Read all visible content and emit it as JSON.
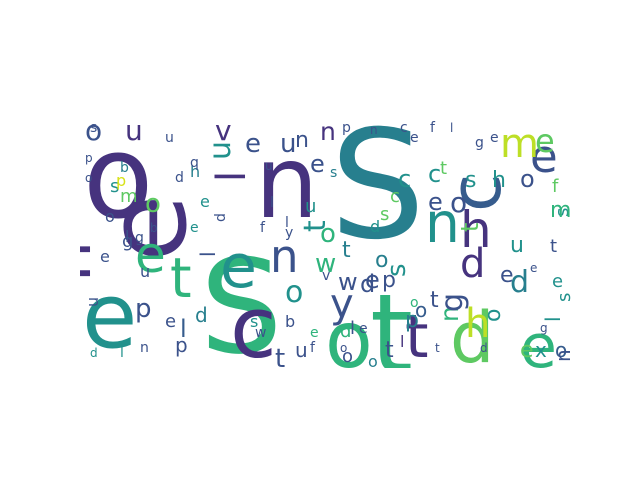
{
  "word_cloud": {
    "colors": {
      "purple": "#46337e",
      "indigo": "#3b528b",
      "blue": "#365c8d",
      "teal": "#277f8e",
      "sea": "#21918c",
      "green": "#2fb47c",
      "lime": "#5ec962",
      "yellow": "#bddf26",
      "gold": "#d8e219"
    },
    "words": [
      {
        "text": "S",
        "color": "teal",
        "emphasis": "largest"
      },
      {
        "text": "S",
        "color": "green",
        "emphasis": "large"
      },
      {
        "text": "o",
        "color": "purple",
        "emphasis": "large"
      },
      {
        "text": "n",
        "color": "purple",
        "emphasis": "large"
      },
      {
        "text": "e",
        "color": "sea",
        "emphasis": "large"
      },
      {
        "text": "e",
        "color": "purple",
        "emphasis": "large"
      },
      {
        "text": "c",
        "color": "purple",
        "emphasis": "large"
      },
      {
        "text": "o",
        "color": "green",
        "emphasis": "large"
      },
      {
        "text": "t",
        "color": "green",
        "emphasis": "large"
      },
      {
        "text": "d",
        "color": "lime",
        "emphasis": "large"
      },
      {
        "text": "e",
        "color": "green",
        "emphasis": "large"
      },
      {
        "text": "c",
        "color": "blue",
        "emphasis": "large"
      },
      {
        "text": "h",
        "color": "purple",
        "emphasis": "large"
      },
      {
        "text": "t",
        "color": "green",
        "emphasis": "medium"
      },
      {
        "text": "e",
        "color": "green",
        "emphasis": "medium"
      },
      {
        "text": "e",
        "color": "sea",
        "emphasis": "medium"
      },
      {
        "text": "n",
        "color": "sea",
        "emphasis": "medium"
      },
      {
        "text": "h",
        "color": "purple",
        "emphasis": "medium"
      },
      {
        "text": "n",
        "color": "indigo",
        "emphasis": "medium"
      },
      {
        "text": "t",
        "color": "purple",
        "emphasis": "medium"
      },
      {
        "text": "y",
        "color": "indigo",
        "emphasis": "medium"
      },
      {
        "text": "e",
        "color": "indigo",
        "emphasis": "medium"
      },
      {
        "text": "m",
        "color": "yellow",
        "emphasis": "medium"
      },
      {
        "text": "e",
        "color": "lime",
        "emphasis": "medium"
      },
      {
        "text": "l",
        "color": "purple",
        "emphasis": "medium"
      },
      {
        "text": "d",
        "color": "purple",
        "emphasis": "medium"
      },
      {
        "text": "h",
        "color": "yellow",
        "emphasis": "medium"
      },
      {
        "text": "n",
        "color": "green",
        "emphasis": "medium"
      },
      {
        "text": "g",
        "color": "indigo",
        "emphasis": "medium"
      },
      {
        "text": "d",
        "color": "teal",
        "emphasis": "medium"
      },
      {
        "text": "o",
        "color": "indigo",
        "emphasis": "medium"
      },
      {
        "text": "u",
        "color": "purple",
        "emphasis": "medium"
      },
      {
        "text": "v",
        "color": "purple",
        "emphasis": "medium"
      },
      {
        "text": "u",
        "color": "sea",
        "emphasis": "medium"
      },
      {
        "text": "n",
        "color": "purple",
        "emphasis": "medium"
      },
      {
        "text": "o",
        "color": "sea",
        "emphasis": "medium"
      },
      {
        "text": "t",
        "color": "sea",
        "emphasis": "medium"
      },
      {
        "text": "w",
        "color": "green",
        "emphasis": "medium"
      },
      {
        "text": "p",
        "color": "indigo",
        "emphasis": "medium"
      },
      {
        "text": "l",
        "color": "blue",
        "emphasis": "medium"
      },
      {
        "text": "t",
        "color": "indigo",
        "emphasis": "medium"
      },
      {
        "text": "o",
        "color": "indigo",
        "emphasis": "medium"
      },
      {
        "text": "e",
        "color": "indigo",
        "emphasis": "small"
      },
      {
        "text": "u",
        "color": "indigo",
        "emphasis": "small"
      },
      {
        "text": "n",
        "color": "indigo",
        "emphasis": "small"
      },
      {
        "text": "e",
        "color": "indigo",
        "emphasis": "small"
      },
      {
        "text": "o",
        "color": "indigo",
        "emphasis": "small"
      },
      {
        "text": "c",
        "color": "sea",
        "emphasis": "small"
      },
      {
        "text": "s",
        "color": "sea",
        "emphasis": "small"
      },
      {
        "text": "h",
        "color": "sea",
        "emphasis": "small"
      },
      {
        "text": "o",
        "color": "lime",
        "emphasis": "small"
      },
      {
        "text": "t",
        "color": "lime",
        "emphasis": "small"
      },
      {
        "text": "c",
        "color": "sea",
        "emphasis": "small"
      },
      {
        "text": "e",
        "color": "indigo",
        "emphasis": "small"
      },
      {
        "text": "o",
        "color": "green",
        "emphasis": "small"
      },
      {
        "text": "w",
        "color": "indigo",
        "emphasis": "small"
      },
      {
        "text": "e",
        "color": "indigo",
        "emphasis": "small"
      },
      {
        "text": "p",
        "color": "indigo",
        "emphasis": "small"
      },
      {
        "text": "o",
        "color": "teal",
        "emphasis": "small"
      },
      {
        "text": "t",
        "color": "teal",
        "emphasis": "small"
      },
      {
        "text": "s",
        "color": "sea",
        "emphasis": "small"
      },
      {
        "text": "p",
        "color": "teal",
        "emphasis": "small"
      },
      {
        "text": "o",
        "color": "blue",
        "emphasis": "small"
      },
      {
        "text": "t",
        "color": "indigo",
        "emphasis": "small"
      },
      {
        "text": "e",
        "color": "indigo",
        "emphasis": "small"
      },
      {
        "text": "o",
        "color": "sea",
        "emphasis": "small"
      },
      {
        "text": "u",
        "color": "sea",
        "emphasis": "small"
      },
      {
        "text": "e",
        "color": "lime",
        "emphasis": "small"
      },
      {
        "text": "x",
        "color": "sea",
        "emphasis": "small"
      },
      {
        "text": "o",
        "color": "blue",
        "emphasis": "small"
      },
      {
        "text": "d",
        "color": "teal",
        "emphasis": "small"
      },
      {
        "text": "u",
        "color": "indigo",
        "emphasis": "small"
      },
      {
        "text": "e",
        "color": "indigo",
        "emphasis": "small"
      },
      {
        "text": "p",
        "color": "indigo",
        "emphasis": "small"
      },
      {
        "text": "g",
        "color": "indigo",
        "emphasis": "small"
      },
      {
        "text": "l",
        "color": "indigo",
        "emphasis": "small"
      },
      {
        "text": "l",
        "color": "indigo",
        "emphasis": "small"
      },
      {
        "text": "d",
        "color": "indigo",
        "emphasis": "small"
      },
      {
        "text": "t",
        "color": "indigo",
        "emphasis": "small"
      },
      {
        "text": "n",
        "color": "indigo",
        "emphasis": "small"
      },
      {
        "text": "u",
        "color": "indigo",
        "emphasis": "small"
      },
      {
        "text": "o",
        "color": "indigo",
        "emphasis": "small"
      },
      {
        "text": "l",
        "color": "purple",
        "emphasis": "small"
      },
      {
        "text": "t",
        "color": "lime",
        "emphasis": "small"
      },
      {
        "text": "c",
        "color": "lime",
        "emphasis": "small"
      },
      {
        "text": "s",
        "color": "lime",
        "emphasis": "small"
      },
      {
        "text": "d",
        "color": "sea",
        "emphasis": "small"
      },
      {
        "text": "t",
        "color": "teal",
        "emphasis": "small"
      },
      {
        "text": "f",
        "color": "lime",
        "emphasis": "small"
      },
      {
        "text": "s",
        "color": "sea",
        "emphasis": "small"
      },
      {
        "text": "t",
        "color": "indigo",
        "emphasis": "small"
      },
      {
        "text": "e",
        "color": "sea",
        "emphasis": "small"
      },
      {
        "text": "l",
        "color": "sea",
        "emphasis": "small"
      },
      {
        "text": "s",
        "color": "sea",
        "emphasis": "small"
      },
      {
        "text": "m",
        "color": "green",
        "emphasis": "small"
      },
      {
        "text": "o",
        "color": "teal",
        "emphasis": "small"
      },
      {
        "text": "d",
        "color": "green",
        "emphasis": "small"
      },
      {
        "text": "s",
        "color": "sea",
        "emphasis": "small"
      },
      {
        "text": "u",
        "color": "sea",
        "emphasis": "small"
      },
      {
        "text": "s",
        "color": "sea",
        "emphasis": "small"
      },
      {
        "text": "m",
        "color": "lime",
        "emphasis": "small"
      },
      {
        "text": "p",
        "color": "gold",
        "emphasis": "small"
      },
      {
        "text": "o",
        "color": "indigo",
        "emphasis": "small"
      },
      {
        "text": "s",
        "color": "indigo",
        "emphasis": "small"
      },
      {
        "text": "b",
        "color": "teal",
        "emphasis": "small"
      },
      {
        "text": "d",
        "color": "indigo",
        "emphasis": "small"
      },
      {
        "text": "h",
        "color": "teal",
        "emphasis": "small"
      },
      {
        "text": "e",
        "color": "sea",
        "emphasis": "small"
      },
      {
        "text": "d",
        "color": "indigo",
        "emphasis": "small"
      },
      {
        "text": "e",
        "color": "sea",
        "emphasis": "small"
      },
      {
        "text": "l",
        "color": "indigo",
        "emphasis": "small"
      },
      {
        "text": "g",
        "color": "indigo",
        "emphasis": "small"
      },
      {
        "text": "u",
        "color": "indigo",
        "emphasis": "small"
      },
      {
        "text": "e",
        "color": "indigo",
        "emphasis": "small"
      },
      {
        "text": "l",
        "color": "sea",
        "emphasis": "small"
      },
      {
        "text": "d",
        "color": "sea",
        "emphasis": "small"
      },
      {
        "text": "n",
        "color": "indigo",
        "emphasis": "small"
      },
      {
        "text": "b",
        "color": "indigo",
        "emphasis": "small"
      },
      {
        "text": "e",
        "color": "green",
        "emphasis": "small"
      },
      {
        "text": "o",
        "color": "green",
        "emphasis": "small"
      },
      {
        "text": "s",
        "color": "teal",
        "emphasis": "small"
      },
      {
        "text": "p",
        "color": "indigo",
        "emphasis": "small"
      },
      {
        "text": "n",
        "color": "indigo",
        "emphasis": "small"
      },
      {
        "text": "c",
        "color": "indigo",
        "emphasis": "small"
      },
      {
        "text": "e",
        "color": "indigo",
        "emphasis": "small"
      },
      {
        "text": "f",
        "color": "indigo",
        "emphasis": "small"
      },
      {
        "text": "l",
        "color": "indigo",
        "emphasis": "small"
      },
      {
        "text": "g",
        "color": "indigo",
        "emphasis": "small"
      },
      {
        "text": "e",
        "color": "indigo",
        "emphasis": "small"
      },
      {
        "text": "u",
        "color": "indigo",
        "emphasis": "small"
      },
      {
        "text": "q",
        "color": "indigo",
        "emphasis": "small"
      },
      {
        "text": "u",
        "color": "indigo",
        "emphasis": "small"
      },
      {
        "text": "f",
        "color": "indigo",
        "emphasis": "small"
      },
      {
        "text": "l",
        "color": "indigo",
        "emphasis": "small"
      },
      {
        "text": "y",
        "color": "indigo",
        "emphasis": "small"
      },
      {
        "text": "w",
        "color": "indigo",
        "emphasis": "small"
      },
      {
        "text": "f",
        "color": "indigo",
        "emphasis": "small"
      },
      {
        "text": "o",
        "color": "indigo",
        "emphasis": "small"
      },
      {
        "text": "t",
        "color": "indigo",
        "emphasis": "small"
      },
      {
        "text": "d",
        "color": "indigo",
        "emphasis": "small"
      },
      {
        "text": "e",
        "color": "indigo",
        "emphasis": "small"
      },
      {
        "text": "g",
        "color": "indigo",
        "emphasis": "small"
      },
      {
        "text": "p",
        "color": "indigo",
        "emphasis": "small"
      },
      {
        "text": "o",
        "color": "indigo",
        "emphasis": "small"
      },
      {
        "text": "b",
        "color": "indigo",
        "emphasis": "small"
      },
      {
        "text": "l",
        "color": "indigo",
        "emphasis": "small"
      },
      {
        "text": "v",
        "color": "indigo",
        "emphasis": "small"
      },
      {
        "text": "e",
        "color": "indigo",
        "emphasis": "small"
      }
    ]
  }
}
